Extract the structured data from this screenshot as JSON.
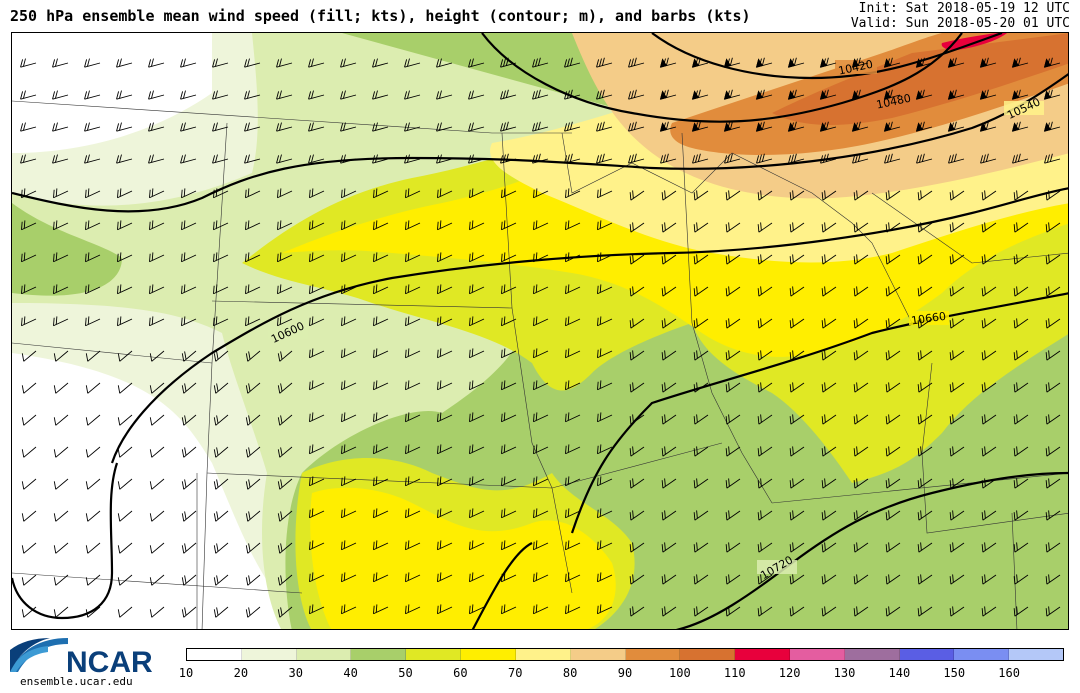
{
  "header": {
    "title": "250 hPa ensemble mean wind speed (fill; kts), height (contour; m), and barbs (kts)",
    "init": "Init: Sat 2018-05-19 12 UTC",
    "valid": "Valid: Sun 2018-05-20 01 UTC"
  },
  "map": {
    "contour_labels": [
      "10420",
      "10480",
      "10540",
      "10600",
      "10660",
      "10720"
    ]
  },
  "logo": {
    "text": "NCAR",
    "subtitle": "ensemble.ucar.edu"
  },
  "colorbar": {
    "labels": [
      "10",
      "20",
      "30",
      "40",
      "50",
      "60",
      "70",
      "80",
      "90",
      "100",
      "110",
      "120",
      "130",
      "140",
      "150",
      "160"
    ],
    "colors": [
      "#ffffff",
      "#eef5da",
      "#dcedb0",
      "#a8cf6a",
      "#e0e824",
      "#ffee00",
      "#fff28a",
      "#f4cc88",
      "#e18c3c",
      "#d77230",
      "#e8003c",
      "#e45da0",
      "#9e6e9e",
      "#5a5ee4",
      "#7a8ef2",
      "#b4c8f8"
    ]
  },
  "wind_colors": {
    "10-20": "#ffffff",
    "20-30": "#eef5da",
    "30-40": "#dcedb0",
    "40-50": "#a8cf6a",
    "50-60": "#e0e824",
    "60-70": "#ffee00",
    "70-80": "#fff28a",
    "80-90": "#f4cc88",
    "90-100": "#e18c3c",
    "100-110": "#d77230",
    "110-120": "#e8003c"
  }
}
